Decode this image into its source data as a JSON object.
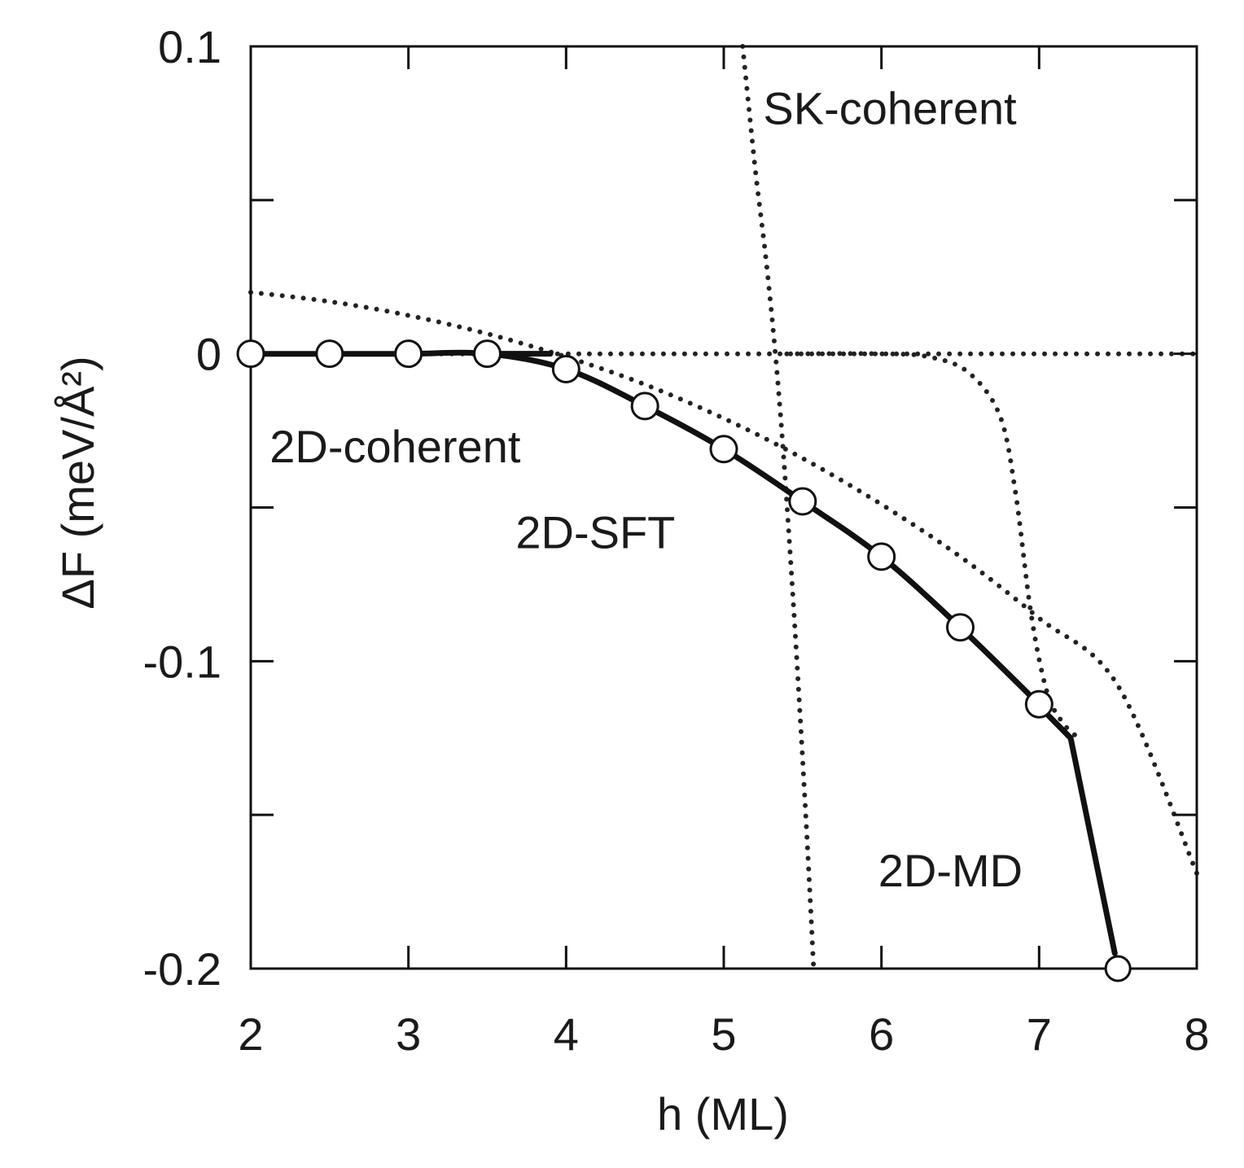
{
  "chart_data": {
    "type": "line",
    "title": "",
    "xlabel": "h (ML)",
    "ylabel": "ΔF (meV/Å²)",
    "xlim": [
      2,
      8
    ],
    "ylim": [
      -0.2,
      0.1
    ],
    "x_ticks": [
      {
        "value": 2,
        "label": "2"
      },
      {
        "value": 3,
        "label": "3"
      },
      {
        "value": 4,
        "label": "4"
      },
      {
        "value": 5,
        "label": "5"
      },
      {
        "value": 6,
        "label": "6"
      },
      {
        "value": 7,
        "label": "7"
      },
      {
        "value": 8,
        "label": "8"
      }
    ],
    "y_ticks": [
      {
        "value": 0.1,
        "label": "0.1"
      },
      {
        "value": 0.05,
        "label": ""
      },
      {
        "value": 0,
        "label": "0"
      },
      {
        "value": -0.05,
        "label": ""
      },
      {
        "value": -0.1,
        "label": "-0.1"
      },
      {
        "value": -0.15,
        "label": ""
      },
      {
        "value": -0.2,
        "label": "-0.2"
      }
    ],
    "grid": false,
    "series": [
      {
        "name": "path",
        "style": "solid-thick-markers",
        "x": [
          2.0,
          2.5,
          3.0,
          3.5,
          4.0,
          4.5,
          5.0,
          5.5,
          6.0,
          6.5,
          7.0
        ],
        "y": [
          0.0,
          0.0,
          0.0,
          0.0,
          -0.005,
          -0.017,
          -0.031,
          -0.048,
          -0.066,
          -0.089,
          -0.114
        ]
      },
      {
        "name": "final",
        "style": "marker",
        "x": [
          7.5
        ],
        "y": [
          -0.2
        ]
      },
      {
        "name": "2D-coherent",
        "style": "dotted",
        "x": [
          2.0,
          2.5,
          3.0,
          3.5,
          4.0,
          4.5,
          5.0,
          5.5,
          6.0,
          6.5,
          7.0,
          7.5,
          8.0
        ],
        "y": [
          0.02,
          0.017,
          0.0125,
          0.0065,
          -0.001,
          -0.01,
          -0.021,
          -0.034,
          -0.049,
          -0.066,
          -0.086,
          -0.108,
          -0.169
        ]
      },
      {
        "name": "zero",
        "style": "dotted",
        "x": [
          2.0,
          8.0
        ],
        "y": [
          0.0,
          0.0
        ]
      },
      {
        "name": "SK-coherent",
        "style": "dotted",
        "x": [
          5.12,
          5.2,
          5.28,
          5.36,
          5.44,
          5.52,
          5.57
        ],
        "y": [
          0.1,
          0.06,
          0.025,
          -0.02,
          -0.08,
          -0.15,
          -0.2
        ]
      },
      {
        "name": "2D-MD",
        "style": "dotted",
        "x": [
          5.4,
          6.0,
          6.3,
          6.55,
          6.75,
          6.85,
          6.95,
          7.05,
          7.15,
          7.25
        ],
        "y": [
          0.0,
          0.0,
          -0.001,
          -0.006,
          -0.02,
          -0.045,
          -0.085,
          -0.11,
          -0.12,
          -0.125
        ]
      }
    ],
    "arrows": [
      {
        "from": [
          3.5,
          0.0
        ],
        "to": [
          3.9,
          0.0
        ]
      },
      {
        "from": [
          6.95,
          -0.112
        ],
        "to": [
          7.2,
          -0.125
        ]
      },
      {
        "from": [
          7.2,
          -0.125
        ],
        "to": [
          7.48,
          -0.195
        ]
      }
    ],
    "annotations": [
      {
        "text": "SK-coherent",
        "x": 5.25,
        "y": 0.08
      },
      {
        "text": "2D-coherent",
        "x": 2.12,
        "y": -0.03
      },
      {
        "text": "2D-SFT",
        "x": 3.68,
        "y": -0.058
      },
      {
        "text": "2D-MD",
        "x": 5.98,
        "y": -0.168
      }
    ]
  }
}
